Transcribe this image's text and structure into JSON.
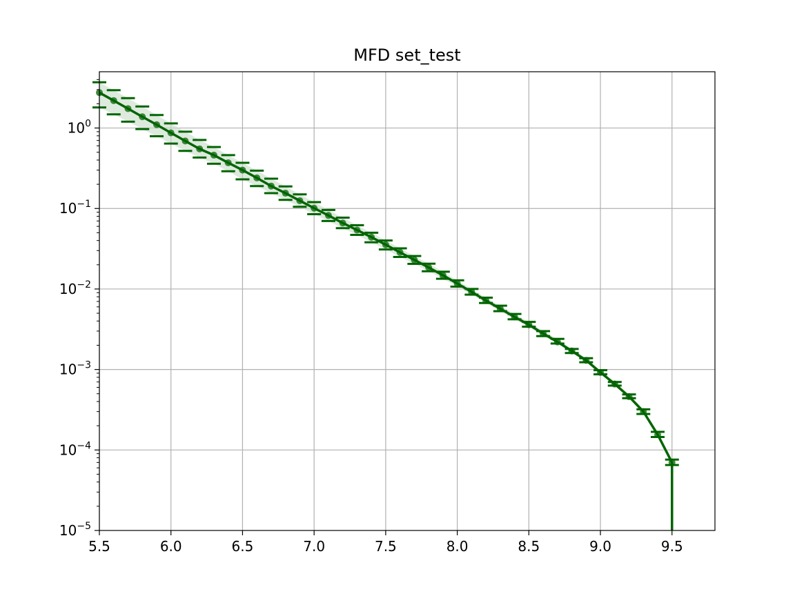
{
  "chart_data": {
    "type": "line",
    "title": "MFD set_test",
    "xlabel": "",
    "ylabel": "",
    "xlim": [
      5.5,
      9.8
    ],
    "ylim": [
      1e-05,
      5
    ],
    "yscale": "log",
    "grid": true,
    "x_ticks": [
      {
        "value": 5.5,
        "label": "5.5"
      },
      {
        "value": 6.0,
        "label": "6.0"
      },
      {
        "value": 6.5,
        "label": "6.5"
      },
      {
        "value": 7.0,
        "label": "7.0"
      },
      {
        "value": 7.5,
        "label": "7.5"
      },
      {
        "value": 8.0,
        "label": "8.0"
      },
      {
        "value": 8.5,
        "label": "8.5"
      },
      {
        "value": 9.0,
        "label": "9.0"
      },
      {
        "value": 9.5,
        "label": "9.5"
      }
    ],
    "y_ticks": [
      {
        "value": 1,
        "mantissa": "10",
        "exponent": "0"
      },
      {
        "value": 0.1,
        "mantissa": "10",
        "exponent": "−1"
      },
      {
        "value": 0.01,
        "mantissa": "10",
        "exponent": "−2"
      },
      {
        "value": 0.001,
        "mantissa": "10",
        "exponent": "−3"
      },
      {
        "value": 0.0001,
        "mantissa": "10",
        "exponent": "−4"
      },
      {
        "value": 1e-05,
        "mantissa": "10",
        "exponent": "−5"
      }
    ],
    "colors": {
      "line": "#006400",
      "band": "#c8dcc8",
      "grid": "#b0b0b0"
    },
    "series": [
      {
        "x": [
          5.5,
          5.6,
          5.7,
          5.8,
          5.9,
          6.0,
          6.1,
          6.2,
          6.3,
          6.4,
          6.5,
          6.6,
          6.7,
          6.8,
          6.9,
          7.0,
          7.1,
          7.2,
          7.3,
          7.4,
          7.5,
          7.6,
          7.7,
          7.8,
          7.9,
          8.0,
          8.1,
          8.2,
          8.3,
          8.4,
          8.5,
          8.6,
          8.7,
          8.8,
          8.9,
          9.0,
          9.1,
          9.2,
          9.3,
          9.4,
          9.5
        ],
        "y": [
          2.75,
          2.19,
          1.74,
          1.38,
          1.1,
          0.87,
          0.69,
          0.55,
          0.46,
          0.37,
          0.3,
          0.24,
          0.19,
          0.155,
          0.125,
          0.101,
          0.082,
          0.066,
          0.054,
          0.044,
          0.0355,
          0.0285,
          0.023,
          0.0185,
          0.0148,
          0.0117,
          0.0092,
          0.0072,
          0.0057,
          0.0045,
          0.0036,
          0.0028,
          0.0022,
          0.0017,
          0.0013,
          0.00092,
          0.00066,
          0.00046,
          0.0003,
          0.000155,
          7e-05
        ],
        "lower": [
          1.8,
          1.48,
          1.2,
          0.97,
          0.79,
          0.64,
          0.52,
          0.43,
          0.36,
          0.29,
          0.23,
          0.19,
          0.155,
          0.128,
          0.105,
          0.085,
          0.07,
          0.057,
          0.047,
          0.038,
          0.031,
          0.025,
          0.0205,
          0.0166,
          0.0134,
          0.0107,
          0.0085,
          0.0067,
          0.0053,
          0.0042,
          0.0034,
          0.0026,
          0.0021,
          0.0016,
          0.00123,
          0.00087,
          0.00063,
          0.00044,
          0.00028,
          0.000145,
          6.5e-05
        ],
        "upper": [
          3.7,
          2.95,
          2.35,
          1.85,
          1.45,
          1.14,
          0.9,
          0.71,
          0.58,
          0.46,
          0.37,
          0.295,
          0.235,
          0.188,
          0.15,
          0.12,
          0.096,
          0.077,
          0.062,
          0.05,
          0.04,
          0.032,
          0.0257,
          0.0206,
          0.0164,
          0.0128,
          0.01,
          0.0078,
          0.0062,
          0.0049,
          0.0039,
          0.003,
          0.0024,
          0.0018,
          0.00138,
          0.00098,
          0.0007,
          0.00049,
          0.00032,
          0.000168,
          7.6e-05
        ]
      }
    ],
    "final_drop_to": 1e-05
  }
}
